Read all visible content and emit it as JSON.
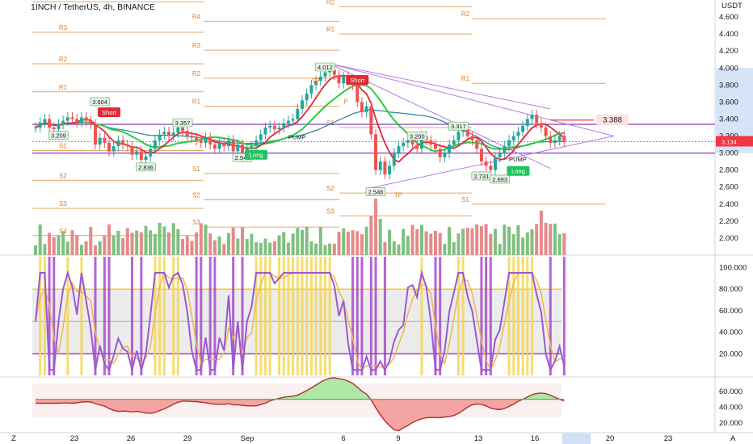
{
  "header": {
    "symbol_title": "1INCH / TetherUS, 4h, BINANCE",
    "currency": "USDT"
  },
  "price_axis": [
    "4.600",
    "4.400",
    "4.200",
    "4.000",
    "3.800",
    "3.600",
    "3.400",
    "3.200",
    "3.000",
    "2.800",
    "2.600",
    "2.400",
    "2.200",
    "2.000"
  ],
  "price_badges": {
    "current": "3.134",
    "target": "3.388"
  },
  "stoch_axis": [
    "100.000",
    "80.000",
    "60.000",
    "40.000",
    "20.000"
  ],
  "osc_axis": [
    "60.000",
    "40.000",
    "20.000"
  ],
  "x_axis": [
    "23",
    "26",
    "29",
    "Sep",
    "6",
    "9",
    "13",
    "16",
    "20",
    "23"
  ],
  "corner": {
    "left": "Z",
    "right": "A"
  },
  "signals": {
    "short": "Short",
    "long": "Long",
    "pump": "PUMP",
    "tp": "TP",
    "p": "P"
  },
  "pivot_sets": [
    {
      "labels": [
        "R4",
        "R3",
        "R2",
        "R1",
        "S1",
        "S2",
        "S3",
        "S4"
      ]
    },
    {
      "labels": [
        "R4",
        "R3",
        "R2",
        "R1",
        "S1",
        "S2",
        "S3"
      ]
    },
    {
      "labels": [
        "R2",
        "R1",
        "S1",
        "S2",
        "S3"
      ]
    },
    {
      "labels": [
        "R2",
        "R1",
        "S1"
      ]
    }
  ],
  "chart_data": {
    "type": "line",
    "title": "1INCH / TetherUS, 4h, BINANCE",
    "ylim": [
      1.8,
      4.8
    ],
    "x_ticks": [
      "23",
      "26",
      "29",
      "Sep",
      "6",
      "9",
      "13",
      "16",
      "20",
      "23"
    ],
    "close": [
      3.3,
      3.36,
      3.4,
      3.3,
      3.28,
      3.34,
      3.38,
      3.42,
      3.4,
      3.36,
      3.42,
      3.38,
      3.34,
      3.1,
      3.18,
      3.12,
      3.02,
      3.08,
      3.15,
      3.1,
      3.08,
      2.98,
      3.02,
      2.92,
      2.96,
      3.05,
      3.15,
      3.22,
      3.25,
      3.2,
      3.24,
      3.3,
      3.26,
      3.2,
      3.18,
      3.15,
      3.12,
      3.18,
      3.1,
      3.05,
      3.12,
      3.08,
      3.15,
      3.02,
      3.1,
      2.95,
      3.05,
      3.08,
      3.15,
      3.22,
      3.3,
      3.32,
      3.28,
      3.3,
      3.35,
      3.38,
      3.4,
      3.52,
      3.62,
      3.7,
      3.8,
      3.85,
      3.9,
      3.95,
      3.98,
      3.92,
      3.82,
      3.9,
      3.85,
      3.8,
      3.6,
      3.48,
      3.55,
      3.22,
      2.8,
      2.9,
      2.75,
      2.85,
      3.0,
      3.08,
      3.12,
      3.15,
      3.1,
      3.05,
      3.2,
      3.15,
      3.1,
      3.05,
      2.95,
      3.0,
      3.1,
      3.15,
      3.25,
      3.28,
      3.2,
      3.15,
      3.05,
      2.9,
      2.85,
      2.8,
      2.95,
      3.0,
      3.08,
      3.15,
      3.2,
      3.25,
      3.32,
      3.4,
      3.45,
      3.35,
      3.3,
      3.2,
      3.12,
      3.15,
      3.2,
      3.134
    ],
    "pivot_labels": [
      {
        "label": "3.604",
        "value": 3.604
      },
      {
        "label": "3.357",
        "value": 3.357
      },
      {
        "label": "3.209",
        "value": 3.209
      },
      {
        "label": "2.948",
        "value": 2.948
      },
      {
        "label": "2.836",
        "value": 2.836
      },
      {
        "label": "4.012",
        "value": 4.012
      },
      {
        "label": "3.200",
        "value": 3.2
      },
      {
        "label": "2.731",
        "value": 2.731
      },
      {
        "label": "3.317",
        "value": 3.317
      },
      {
        "label": "2.693",
        "value": 2.693
      },
      {
        "label": "2.546",
        "value": 2.546
      }
    ],
    "stoch_range": [
      0,
      110
    ],
    "stoch_levels": [
      80,
      20
    ],
    "osc_range": [
      10,
      75
    ]
  }
}
